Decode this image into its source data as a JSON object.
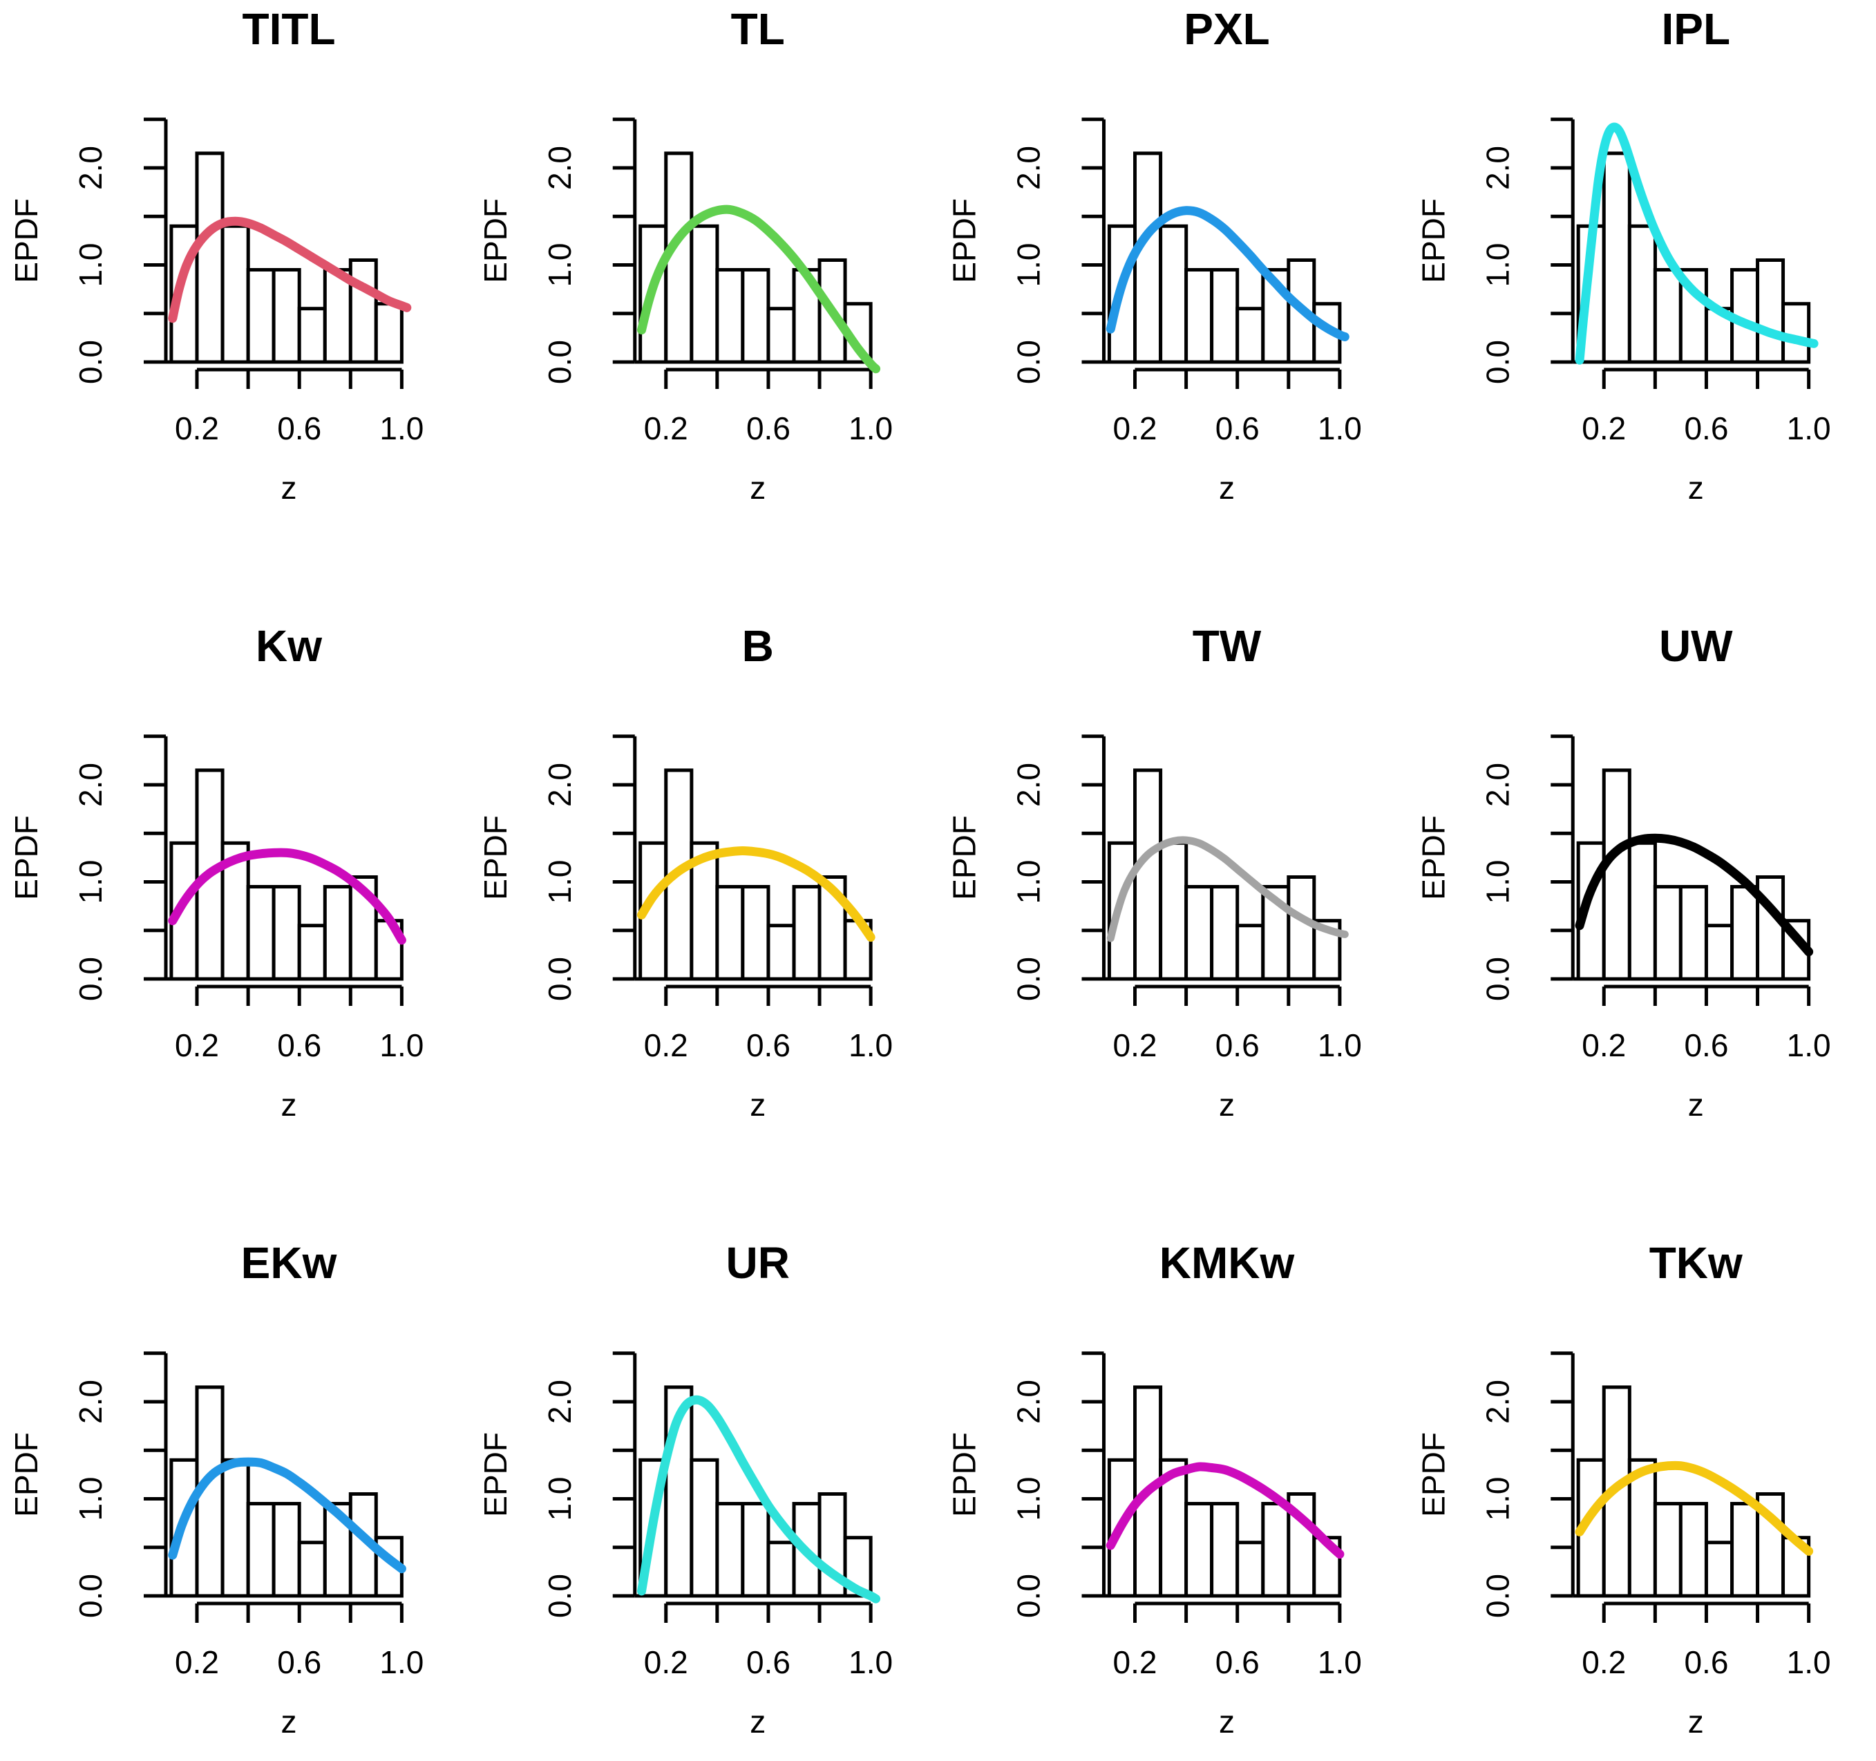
{
  "figure_title": "",
  "chart_data": {
    "type": "histogram+line",
    "layout": {
      "rows": 3,
      "cols": 4
    },
    "xlabel": "z",
    "ylabel": "EPDF",
    "x_ticks": [
      0.2,
      0.4,
      0.6,
      0.8,
      1.0
    ],
    "x_tick_labels": [
      {
        "value": 0.2,
        "label": "0.2"
      },
      {
        "value": 0.6,
        "label": "0.6"
      },
      {
        "value": 1.0,
        "label": "1.0"
      }
    ],
    "y_ticks": [
      0.0,
      0.5,
      1.0,
      1.5,
      2.0,
      2.5
    ],
    "y_tick_labels": [
      {
        "value": 0.0,
        "label": "0.0"
      },
      {
        "value": 1.0,
        "label": "1.0"
      },
      {
        "value": 2.0,
        "label": "2.0"
      }
    ],
    "xlim": [
      0.09,
      1.03
    ],
    "ylim": [
      0.0,
      2.5
    ],
    "grid": false,
    "histogram": {
      "shared_across_panels": true,
      "bin_start": 0.1,
      "bin_width": 0.1,
      "bar_fill": "#ffffff",
      "bar_stroke": "#000000",
      "heights": [
        1.4,
        2.15,
        1.4,
        0.95,
        0.95,
        0.55,
        0.95,
        1.05,
        0.6
      ]
    },
    "panels": [
      {
        "title": "TITL",
        "color": "#DF536B",
        "curve": [
          [
            0.105,
            0.45
          ],
          [
            0.13,
            0.75
          ],
          [
            0.16,
            1.0
          ],
          [
            0.2,
            1.2
          ],
          [
            0.25,
            1.35
          ],
          [
            0.3,
            1.43
          ],
          [
            0.35,
            1.45
          ],
          [
            0.4,
            1.43
          ],
          [
            0.45,
            1.38
          ],
          [
            0.5,
            1.31
          ],
          [
            0.55,
            1.24
          ],
          [
            0.6,
            1.16
          ],
          [
            0.65,
            1.08
          ],
          [
            0.7,
            1.0
          ],
          [
            0.75,
            0.92
          ],
          [
            0.8,
            0.84
          ],
          [
            0.85,
            0.77
          ],
          [
            0.9,
            0.7
          ],
          [
            0.95,
            0.63
          ],
          [
            1.0,
            0.58
          ],
          [
            1.02,
            0.56
          ]
        ]
      },
      {
        "title": "TL",
        "color": "#61D04F",
        "curve": [
          [
            0.105,
            0.33
          ],
          [
            0.13,
            0.6
          ],
          [
            0.16,
            0.85
          ],
          [
            0.2,
            1.08
          ],
          [
            0.25,
            1.28
          ],
          [
            0.3,
            1.42
          ],
          [
            0.35,
            1.51
          ],
          [
            0.4,
            1.56
          ],
          [
            0.45,
            1.57
          ],
          [
            0.5,
            1.53
          ],
          [
            0.55,
            1.46
          ],
          [
            0.6,
            1.35
          ],
          [
            0.65,
            1.22
          ],
          [
            0.7,
            1.07
          ],
          [
            0.75,
            0.9
          ],
          [
            0.8,
            0.71
          ],
          [
            0.85,
            0.52
          ],
          [
            0.9,
            0.33
          ],
          [
            0.95,
            0.14
          ],
          [
            1.0,
            -0.02
          ],
          [
            1.02,
            -0.07
          ]
        ]
      },
      {
        "title": "PXL",
        "color": "#2297E6",
        "curve": [
          [
            0.105,
            0.34
          ],
          [
            0.13,
            0.62
          ],
          [
            0.16,
            0.88
          ],
          [
            0.2,
            1.12
          ],
          [
            0.25,
            1.32
          ],
          [
            0.3,
            1.45
          ],
          [
            0.35,
            1.53
          ],
          [
            0.4,
            1.56
          ],
          [
            0.45,
            1.54
          ],
          [
            0.5,
            1.47
          ],
          [
            0.55,
            1.37
          ],
          [
            0.6,
            1.24
          ],
          [
            0.65,
            1.1
          ],
          [
            0.7,
            0.95
          ],
          [
            0.75,
            0.81
          ],
          [
            0.8,
            0.67
          ],
          [
            0.85,
            0.55
          ],
          [
            0.9,
            0.44
          ],
          [
            0.95,
            0.35
          ],
          [
            1.0,
            0.28
          ],
          [
            1.02,
            0.26
          ]
        ]
      },
      {
        "title": "IPL",
        "color": "#28E2E5",
        "curve": [
          [
            0.105,
            0.02
          ],
          [
            0.12,
            0.45
          ],
          [
            0.14,
            0.95
          ],
          [
            0.16,
            1.45
          ],
          [
            0.18,
            1.9
          ],
          [
            0.2,
            2.2
          ],
          [
            0.22,
            2.37
          ],
          [
            0.24,
            2.42
          ],
          [
            0.26,
            2.38
          ],
          [
            0.28,
            2.26
          ],
          [
            0.3,
            2.1
          ],
          [
            0.33,
            1.85
          ],
          [
            0.36,
            1.62
          ],
          [
            0.4,
            1.35
          ],
          [
            0.45,
            1.08
          ],
          [
            0.5,
            0.88
          ],
          [
            0.55,
            0.73
          ],
          [
            0.6,
            0.62
          ],
          [
            0.65,
            0.53
          ],
          [
            0.7,
            0.46
          ],
          [
            0.75,
            0.4
          ],
          [
            0.8,
            0.35
          ],
          [
            0.85,
            0.3
          ],
          [
            0.9,
            0.26
          ],
          [
            0.95,
            0.23
          ],
          [
            1.0,
            0.2
          ],
          [
            1.02,
            0.19
          ]
        ]
      },
      {
        "title": "Kw",
        "color": "#CD0BBC",
        "curve": [
          [
            0.105,
            0.6
          ],
          [
            0.15,
            0.8
          ],
          [
            0.2,
            0.97
          ],
          [
            0.25,
            1.09
          ],
          [
            0.3,
            1.17
          ],
          [
            0.35,
            1.23
          ],
          [
            0.4,
            1.27
          ],
          [
            0.45,
            1.29
          ],
          [
            0.5,
            1.3
          ],
          [
            0.55,
            1.3
          ],
          [
            0.6,
            1.28
          ],
          [
            0.65,
            1.24
          ],
          [
            0.7,
            1.18
          ],
          [
            0.75,
            1.11
          ],
          [
            0.8,
            1.02
          ],
          [
            0.85,
            0.91
          ],
          [
            0.9,
            0.78
          ],
          [
            0.95,
            0.62
          ],
          [
            1.0,
            0.4
          ]
        ]
      },
      {
        "title": "B",
        "color": "#F5C710",
        "curve": [
          [
            0.105,
            0.66
          ],
          [
            0.15,
            0.85
          ],
          [
            0.2,
            1.0
          ],
          [
            0.25,
            1.11
          ],
          [
            0.3,
            1.19
          ],
          [
            0.35,
            1.25
          ],
          [
            0.4,
            1.29
          ],
          [
            0.45,
            1.31
          ],
          [
            0.5,
            1.32
          ],
          [
            0.55,
            1.31
          ],
          [
            0.6,
            1.29
          ],
          [
            0.65,
            1.25
          ],
          [
            0.7,
            1.19
          ],
          [
            0.75,
            1.12
          ],
          [
            0.8,
            1.03
          ],
          [
            0.85,
            0.92
          ],
          [
            0.9,
            0.78
          ],
          [
            0.95,
            0.62
          ],
          [
            1.0,
            0.43
          ]
        ]
      },
      {
        "title": "TW",
        "color": "#A3A3A3",
        "curve": [
          [
            0.105,
            0.42
          ],
          [
            0.13,
            0.68
          ],
          [
            0.16,
            0.92
          ],
          [
            0.2,
            1.12
          ],
          [
            0.25,
            1.28
          ],
          [
            0.3,
            1.37
          ],
          [
            0.35,
            1.42
          ],
          [
            0.4,
            1.43
          ],
          [
            0.45,
            1.4
          ],
          [
            0.5,
            1.33
          ],
          [
            0.55,
            1.24
          ],
          [
            0.6,
            1.13
          ],
          [
            0.65,
            1.02
          ],
          [
            0.7,
            0.91
          ],
          [
            0.75,
            0.81
          ],
          [
            0.8,
            0.71
          ],
          [
            0.85,
            0.63
          ],
          [
            0.9,
            0.56
          ],
          [
            0.95,
            0.51
          ],
          [
            1.0,
            0.47
          ],
          [
            1.02,
            0.46
          ]
        ]
      },
      {
        "title": "UW",
        "color": "#000000",
        "curve": [
          [
            0.105,
            0.55
          ],
          [
            0.14,
            0.85
          ],
          [
            0.18,
            1.08
          ],
          [
            0.22,
            1.24
          ],
          [
            0.26,
            1.34
          ],
          [
            0.3,
            1.4
          ],
          [
            0.35,
            1.44
          ],
          [
            0.4,
            1.45
          ],
          [
            0.45,
            1.44
          ],
          [
            0.5,
            1.41
          ],
          [
            0.55,
            1.36
          ],
          [
            0.6,
            1.29
          ],
          [
            0.65,
            1.21
          ],
          [
            0.7,
            1.11
          ],
          [
            0.75,
            1.0
          ],
          [
            0.8,
            0.87
          ],
          [
            0.85,
            0.73
          ],
          [
            0.9,
            0.58
          ],
          [
            0.95,
            0.43
          ],
          [
            1.0,
            0.28
          ]
        ]
      },
      {
        "title": "EKw",
        "color": "#2297E6",
        "curve": [
          [
            0.105,
            0.42
          ],
          [
            0.14,
            0.72
          ],
          [
            0.18,
            0.96
          ],
          [
            0.22,
            1.13
          ],
          [
            0.26,
            1.25
          ],
          [
            0.3,
            1.32
          ],
          [
            0.35,
            1.37
          ],
          [
            0.4,
            1.38
          ],
          [
            0.45,
            1.37
          ],
          [
            0.5,
            1.32
          ],
          [
            0.55,
            1.26
          ],
          [
            0.6,
            1.17
          ],
          [
            0.65,
            1.07
          ],
          [
            0.7,
            0.96
          ],
          [
            0.75,
            0.85
          ],
          [
            0.8,
            0.73
          ],
          [
            0.85,
            0.61
          ],
          [
            0.9,
            0.49
          ],
          [
            0.95,
            0.38
          ],
          [
            1.0,
            0.28
          ]
        ]
      },
      {
        "title": "UR",
        "color": "#2FE1D9",
        "curve": [
          [
            0.105,
            0.05
          ],
          [
            0.13,
            0.45
          ],
          [
            0.16,
            0.9
          ],
          [
            0.2,
            1.4
          ],
          [
            0.24,
            1.78
          ],
          [
            0.28,
            1.97
          ],
          [
            0.32,
            2.02
          ],
          [
            0.36,
            1.97
          ],
          [
            0.4,
            1.84
          ],
          [
            0.45,
            1.62
          ],
          [
            0.5,
            1.38
          ],
          [
            0.55,
            1.15
          ],
          [
            0.6,
            0.93
          ],
          [
            0.65,
            0.75
          ],
          [
            0.7,
            0.59
          ],
          [
            0.75,
            0.45
          ],
          [
            0.8,
            0.33
          ],
          [
            0.85,
            0.23
          ],
          [
            0.9,
            0.14
          ],
          [
            0.95,
            0.06
          ],
          [
            1.0,
            0.0
          ],
          [
            1.02,
            -0.03
          ]
        ]
      },
      {
        "title": "KMKw",
        "color": "#CD0BBC",
        "curve": [
          [
            0.105,
            0.52
          ],
          [
            0.15,
            0.74
          ],
          [
            0.2,
            0.94
          ],
          [
            0.25,
            1.08
          ],
          [
            0.3,
            1.18
          ],
          [
            0.35,
            1.26
          ],
          [
            0.4,
            1.3
          ],
          [
            0.45,
            1.33
          ],
          [
            0.5,
            1.32
          ],
          [
            0.55,
            1.3
          ],
          [
            0.6,
            1.25
          ],
          [
            0.65,
            1.18
          ],
          [
            0.7,
            1.1
          ],
          [
            0.75,
            1.01
          ],
          [
            0.8,
            0.91
          ],
          [
            0.85,
            0.8
          ],
          [
            0.9,
            0.68
          ],
          [
            0.95,
            0.55
          ],
          [
            1.0,
            0.43
          ]
        ]
      },
      {
        "title": "TKw",
        "color": "#F5C710",
        "curve": [
          [
            0.105,
            0.66
          ],
          [
            0.15,
            0.84
          ],
          [
            0.2,
            1.0
          ],
          [
            0.25,
            1.12
          ],
          [
            0.3,
            1.21
          ],
          [
            0.35,
            1.28
          ],
          [
            0.4,
            1.32
          ],
          [
            0.45,
            1.34
          ],
          [
            0.5,
            1.34
          ],
          [
            0.55,
            1.31
          ],
          [
            0.6,
            1.26
          ],
          [
            0.65,
            1.19
          ],
          [
            0.7,
            1.11
          ],
          [
            0.75,
            1.02
          ],
          [
            0.8,
            0.92
          ],
          [
            0.85,
            0.81
          ],
          [
            0.9,
            0.69
          ],
          [
            0.95,
            0.57
          ],
          [
            1.0,
            0.46
          ]
        ]
      }
    ]
  }
}
